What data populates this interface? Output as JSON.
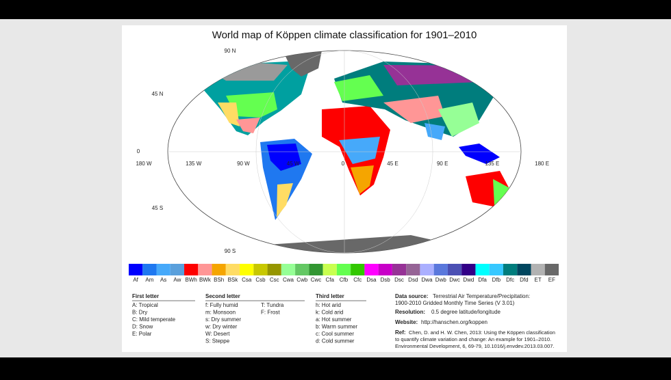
{
  "title": "World map of Köppen climate classification for 1901–2010",
  "map": {
    "lat_labels": [
      "90 N",
      "45 N",
      "0",
      "45 S",
      "90 S"
    ],
    "lon_labels": [
      "180 W",
      "135 W",
      "90 W",
      "45 W",
      "0",
      "45 E",
      "90 E",
      "135 E",
      "180 E"
    ]
  },
  "legend": {
    "classes": [
      {
        "code": "Af",
        "color": "#0000fe"
      },
      {
        "code": "Am",
        "color": "#1f78f0"
      },
      {
        "code": "As",
        "color": "#46a9fa"
      },
      {
        "code": "Aw",
        "color": "#5aa0dc"
      },
      {
        "code": "BWh",
        "color": "#fe0000"
      },
      {
        "code": "BWk",
        "color": "#ff9696"
      },
      {
        "code": "BSh",
        "color": "#f5a500"
      },
      {
        "code": "BSk",
        "color": "#ffdc64"
      },
      {
        "code": "Csa",
        "color": "#ffff00"
      },
      {
        "code": "Csb",
        "color": "#c8c800"
      },
      {
        "code": "Csc",
        "color": "#969600"
      },
      {
        "code": "Cwa",
        "color": "#96ff96"
      },
      {
        "code": "Cwb",
        "color": "#64c864"
      },
      {
        "code": "Cwc",
        "color": "#329632"
      },
      {
        "code": "Cfa",
        "color": "#c8ff50"
      },
      {
        "code": "Cfb",
        "color": "#64ff50"
      },
      {
        "code": "Cfc",
        "color": "#32c800"
      },
      {
        "code": "Dsa",
        "color": "#ff00ff"
      },
      {
        "code": "Dsb",
        "color": "#c800c8"
      },
      {
        "code": "Dsc",
        "color": "#963296"
      },
      {
        "code": "Dsd",
        "color": "#966496"
      },
      {
        "code": "Dwa",
        "color": "#aaafff"
      },
      {
        "code": "Dwb",
        "color": "#5a78dc"
      },
      {
        "code": "Dwc",
        "color": "#4b50b4"
      },
      {
        "code": "Dwd",
        "color": "#320087"
      },
      {
        "code": "Dfa",
        "color": "#00ffff"
      },
      {
        "code": "Dfb",
        "color": "#37c8ff"
      },
      {
        "code": "Dfc",
        "color": "#007d7d"
      },
      {
        "code": "Dfd",
        "color": "#00465f"
      },
      {
        "code": "ET",
        "color": "#b2b2b2"
      },
      {
        "code": "EF",
        "color": "#686868"
      }
    ]
  },
  "key": {
    "first": {
      "heading": "First letter",
      "items": [
        "A:  Tropical",
        "B:  Dry",
        "C:  Mild temperate",
        "D:  Snow",
        "E:  Polar"
      ]
    },
    "second": {
      "heading": "Second letter",
      "items": [
        "f:  Fully humid",
        "m: Monsoon",
        "s:  Dry summer",
        "w: Dry winter",
        "W: Desert",
        "S: Steppe"
      ],
      "items2": [
        "T:  Tundra",
        "F:  Frost"
      ]
    },
    "third": {
      "heading": "Third letter",
      "items": [
        "h:  Hot arid",
        "k:  Cold arid",
        "a:  Hot summer",
        "b:  Warm summer",
        "c:  Cool summer",
        "d:  Cold summer"
      ]
    }
  },
  "info": {
    "source": {
      "label": "Data source:",
      "text": [
        "Terrestrial Air Temperature/Precipitation:",
        "1900-2010 Gridded Monthly Time Series (V 3.01)"
      ]
    },
    "resolution": {
      "label": "Resolution:",
      "text": "0.5 degree latitude/longitude"
    },
    "website": {
      "label": "Website:",
      "text": "http://hanschen.org/koppen"
    },
    "ref": {
      "label": "Ref:",
      "text": [
        "Chen, D. and H. W. Chen, 2013: Using the Köppen classification",
        "to quantify climate variation and change: An example for 1901–2010.",
        "Environmental Development, 6, 69-79, 10.1016/j.envdev.2013.03.007."
      ]
    }
  }
}
